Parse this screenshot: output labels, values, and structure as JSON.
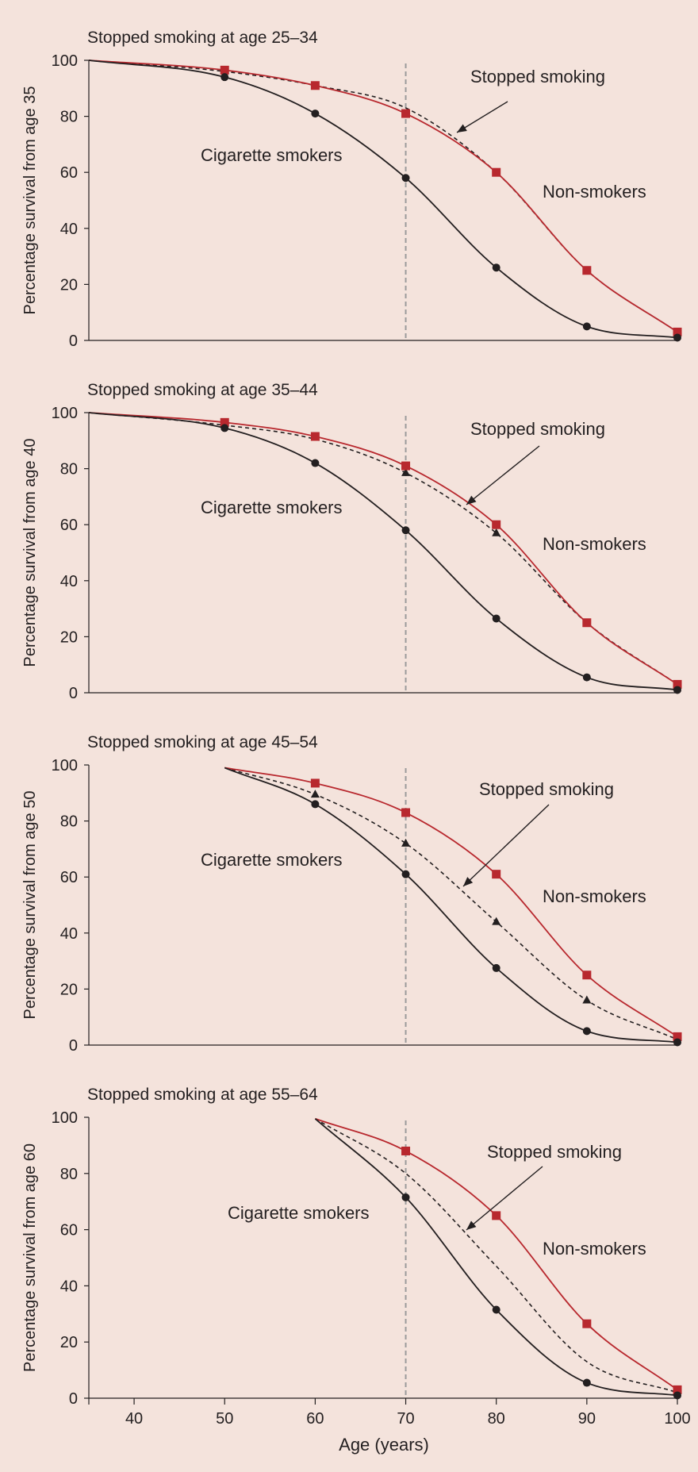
{
  "colors": {
    "background": "#f4e3dc",
    "cigarette_smokers": "#231f20",
    "non_smokers": "#b8282e",
    "stopped_smoking": "#231f20",
    "reference_line": "#9a9a9a"
  },
  "shared_x_axis": {
    "label": "Age (years)",
    "ticks": [
      "40",
      "50",
      "60",
      "70",
      "80",
      "90",
      "100"
    ],
    "range": [
      35,
      100
    ]
  },
  "reference_line_x": 70,
  "chart_data": [
    {
      "type": "line",
      "title": "Stopped smoking at age 25–34",
      "ylabel": "Percentage survival from age 35",
      "xlabel": "",
      "ylim": [
        0,
        100
      ],
      "yticks": [
        "0",
        "20",
        "40",
        "60",
        "80",
        "100"
      ],
      "annotations": {
        "smokers": "Cigarette smokers",
        "stopped": "Stopped smoking",
        "non": "Non-smokers"
      },
      "series": [
        {
          "key": "smokers",
          "x": [
            35,
            50,
            60,
            70,
            80,
            90,
            100
          ],
          "values": [
            100,
            94,
            81,
            58,
            26,
            5,
            1
          ],
          "markers": [
            50,
            60,
            70,
            80,
            90,
            100
          ]
        },
        {
          "key": "stopped",
          "x": [
            35,
            50,
            60,
            70,
            80,
            90,
            100
          ],
          "values": [
            100,
            96,
            91,
            83,
            60,
            25,
            3
          ],
          "markers": []
        },
        {
          "key": "non",
          "x": [
            35,
            50,
            60,
            70,
            80,
            90,
            100
          ],
          "values": [
            100,
            96.5,
            91,
            81,
            60,
            25,
            3
          ],
          "markers": [
            50,
            60,
            70,
            80,
            90,
            100
          ]
        }
      ]
    },
    {
      "type": "line",
      "title": "Stopped smoking at age 35–44",
      "ylabel": "Percentage survival from age 40",
      "xlabel": "",
      "ylim": [
        0,
        100
      ],
      "yticks": [
        "0",
        "20",
        "40",
        "60",
        "80",
        "100"
      ],
      "annotations": {
        "smokers": "Cigarette smokers",
        "stopped": "Stopped smoking",
        "non": "Non-smokers"
      },
      "series": [
        {
          "key": "smokers",
          "x": [
            35,
            50,
            60,
            70,
            80,
            90,
            100
          ],
          "values": [
            100,
            94.5,
            82,
            58,
            26.5,
            5.5,
            1
          ],
          "markers": [
            50,
            60,
            70,
            80,
            90,
            100
          ]
        },
        {
          "key": "stopped",
          "x": [
            35,
            50,
            60,
            70,
            80,
            90,
            100
          ],
          "values": [
            100,
            95.5,
            90.5,
            78.5,
            57,
            25,
            3
          ],
          "markers": [
            70,
            80
          ]
        },
        {
          "key": "non",
          "x": [
            35,
            50,
            60,
            70,
            80,
            90,
            100
          ],
          "values": [
            100,
            96.5,
            91.5,
            81,
            60,
            25,
            3
          ],
          "markers": [
            50,
            60,
            70,
            80,
            90,
            100
          ]
        }
      ]
    },
    {
      "type": "line",
      "title": "Stopped smoking at age 45–54",
      "ylabel": "Percentage survival from age 50",
      "xlabel": "",
      "ylim": [
        0,
        100
      ],
      "yticks": [
        "0",
        "20",
        "40",
        "60",
        "80",
        "100"
      ],
      "annotations": {
        "smokers": "Cigarette smokers",
        "stopped": "Stopped smoking",
        "non": "Non-smokers"
      },
      "series": [
        {
          "key": "smokers",
          "x": [
            50,
            60,
            70,
            80,
            90,
            100
          ],
          "values": [
            99,
            86,
            61,
            27.5,
            5,
            1
          ],
          "markers": [
            60,
            70,
            80,
            90,
            100
          ]
        },
        {
          "key": "stopped",
          "x": [
            50,
            60,
            70,
            80,
            90,
            100
          ],
          "values": [
            99,
            89.5,
            72,
            44,
            16,
            2
          ],
          "markers": [
            60,
            70,
            80,
            90
          ]
        },
        {
          "key": "non",
          "x": [
            50,
            60,
            70,
            80,
            90,
            100
          ],
          "values": [
            99,
            93.5,
            83,
            61,
            25,
            3
          ],
          "markers": [
            60,
            70,
            80,
            90,
            100
          ]
        }
      ]
    },
    {
      "type": "line",
      "title": "Stopped smoking at age 55–64",
      "ylabel": "Percentage survival from age 60",
      "xlabel": "Age (years)",
      "ylim": [
        0,
        100
      ],
      "yticks": [
        "0",
        "20",
        "40",
        "60",
        "80",
        "100"
      ],
      "annotations": {
        "smokers": "Cigarette smokers",
        "stopped": "Stopped smoking",
        "non": "Non-smokers"
      },
      "series": [
        {
          "key": "smokers",
          "x": [
            60,
            70,
            80,
            90,
            100
          ],
          "values": [
            99.5,
            71.5,
            31.5,
            5.5,
            1
          ],
          "markers": [
            70,
            80,
            90,
            100
          ]
        },
        {
          "key": "stopped",
          "x": [
            60,
            70,
            80,
            90,
            100
          ],
          "values": [
            99.5,
            80,
            47,
            13,
            2
          ],
          "markers": []
        },
        {
          "key": "non",
          "x": [
            60,
            70,
            80,
            90,
            100
          ],
          "values": [
            99.5,
            88,
            65,
            26.5,
            3
          ],
          "markers": [
            70,
            80,
            90,
            100
          ]
        }
      ]
    }
  ]
}
